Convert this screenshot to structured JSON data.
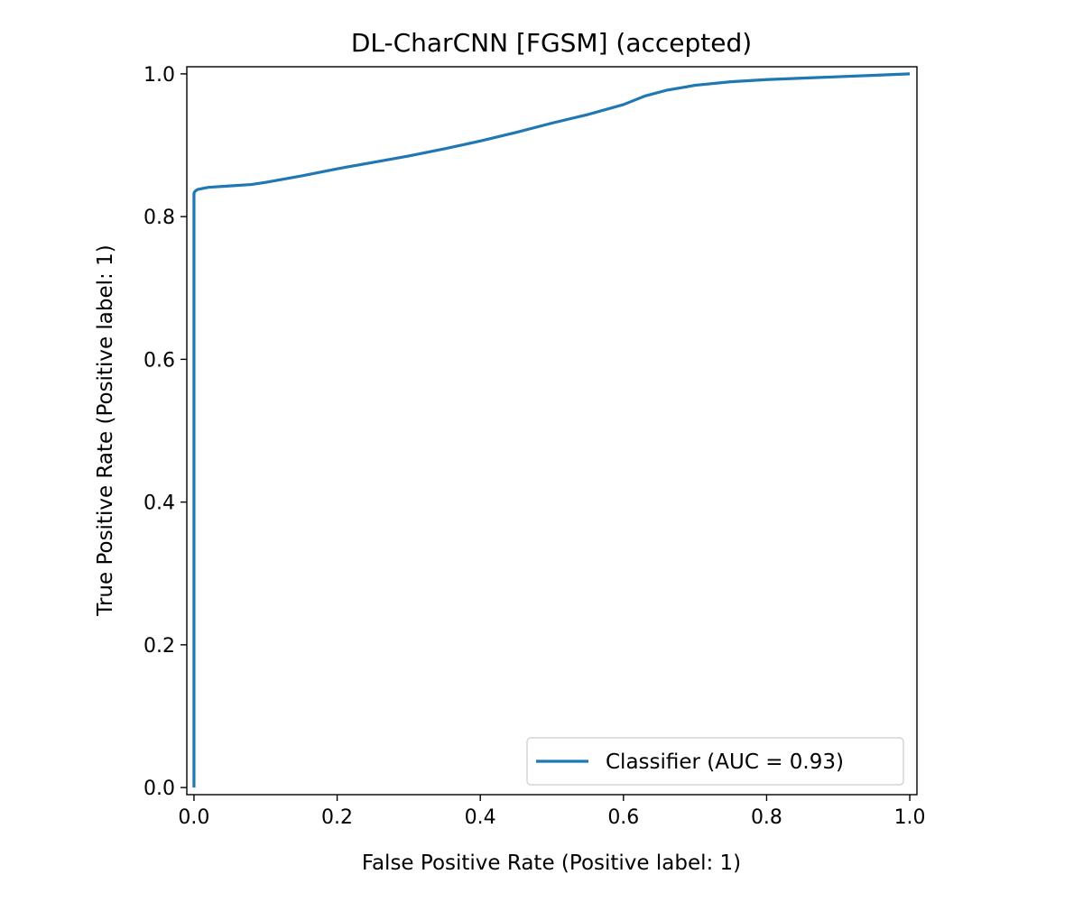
{
  "chart_data": {
    "type": "line",
    "title": "DL-CharCNN [FGSM] (accepted)",
    "xlabel": "False Positive Rate (Positive label: 1)",
    "ylabel": "True Positive Rate (Positive label: 1)",
    "xlim": [
      -0.01,
      1.01
    ],
    "ylim": [
      -0.01,
      1.01
    ],
    "xticks": [
      0.0,
      0.2,
      0.4,
      0.6,
      0.8,
      1.0
    ],
    "yticks": [
      0.0,
      0.2,
      0.4,
      0.6,
      0.8,
      1.0
    ],
    "xtick_labels": [
      "0.0",
      "0.2",
      "0.4",
      "0.6",
      "0.8",
      "1.0"
    ],
    "ytick_labels": [
      "0.0",
      "0.2",
      "0.4",
      "0.6",
      "0.8",
      "1.0"
    ],
    "grid": false,
    "legend_position": "lower right",
    "series": [
      {
        "name": "Classifier (AUC = 0.93)",
        "color": "#1f77b4",
        "x": [
          0.0,
          0.0,
          0.0,
          0.002,
          0.005,
          0.02,
          0.05,
          0.08,
          0.1,
          0.15,
          0.2,
          0.25,
          0.3,
          0.35,
          0.4,
          0.45,
          0.5,
          0.55,
          0.6,
          0.63,
          0.66,
          0.7,
          0.75,
          0.8,
          0.85,
          0.9,
          0.95,
          1.0
        ],
        "y": [
          0.0,
          0.5,
          0.833,
          0.836,
          0.838,
          0.841,
          0.843,
          0.845,
          0.848,
          0.857,
          0.867,
          0.876,
          0.885,
          0.895,
          0.906,
          0.918,
          0.931,
          0.943,
          0.957,
          0.969,
          0.977,
          0.984,
          0.989,
          0.992,
          0.994,
          0.996,
          0.998,
          1.0
        ]
      }
    ]
  }
}
